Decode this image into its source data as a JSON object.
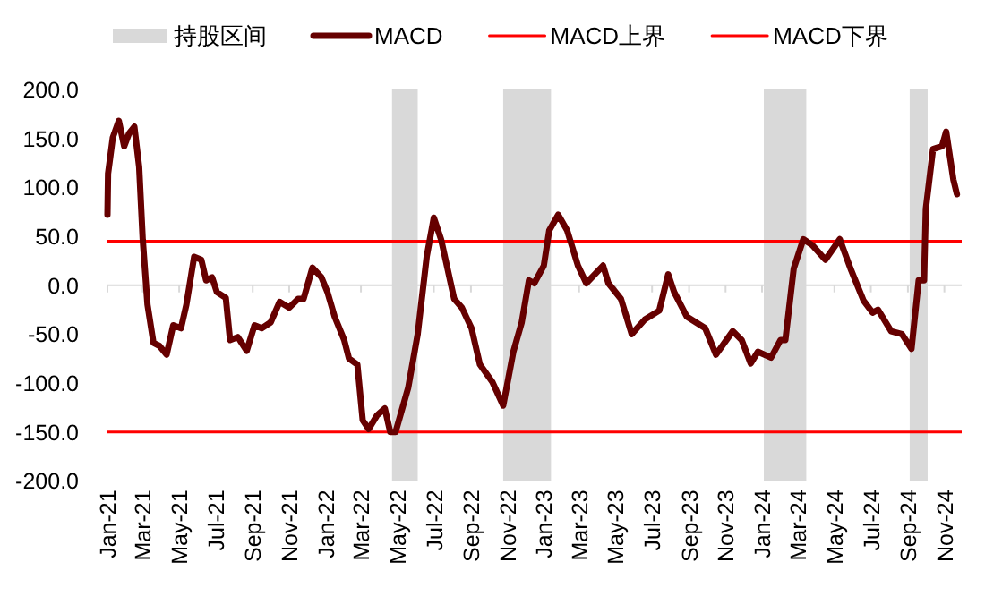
{
  "chart_data": {
    "type": "line",
    "legend": "top",
    "xlim": [
      "2021-01-01",
      "2024-11-30"
    ],
    "xticks": [
      {
        "value": "2021-01-01",
        "label": "Jan-21"
      },
      {
        "value": "2021-03-01",
        "label": "Mar-21"
      },
      {
        "value": "2021-05-01",
        "label": "May-21"
      },
      {
        "value": "2021-07-01",
        "label": "Jul-21"
      },
      {
        "value": "2021-09-01",
        "label": "Sep-21"
      },
      {
        "value": "2021-11-01",
        "label": "Nov-21"
      },
      {
        "value": "2022-01-01",
        "label": "Jan-22"
      },
      {
        "value": "2022-03-01",
        "label": "Mar-22"
      },
      {
        "value": "2022-05-01",
        "label": "May-22"
      },
      {
        "value": "2022-07-01",
        "label": "Jul-22"
      },
      {
        "value": "2022-09-01",
        "label": "Sep-22"
      },
      {
        "value": "2022-11-01",
        "label": "Nov-22"
      },
      {
        "value": "2023-01-01",
        "label": "Jan-23"
      },
      {
        "value": "2023-03-01",
        "label": "Mar-23"
      },
      {
        "value": "2023-05-01",
        "label": "May-23"
      },
      {
        "value": "2023-07-01",
        "label": "Jul-23"
      },
      {
        "value": "2023-09-01",
        "label": "Sep-23"
      },
      {
        "value": "2023-11-01",
        "label": "Nov-23"
      },
      {
        "value": "2024-01-01",
        "label": "Jan-24"
      },
      {
        "value": "2024-03-01",
        "label": "Mar-24"
      },
      {
        "value": "2024-05-01",
        "label": "May-24"
      },
      {
        "value": "2024-07-01",
        "label": "Jul-24"
      },
      {
        "value": "2024-09-01",
        "label": "Sep-24"
      },
      {
        "value": "2024-11-01",
        "label": "Nov-24"
      }
    ],
    "ylim": [
      -200,
      200
    ],
    "yticks": [
      {
        "value": 200,
        "label": "200.0"
      },
      {
        "value": 150,
        "label": "150.0"
      },
      {
        "value": 100,
        "label": "100.0"
      },
      {
        "value": 50,
        "label": "50.0"
      },
      {
        "value": 0,
        "label": "0.0"
      },
      {
        "value": -50,
        "label": "-50.0"
      },
      {
        "value": -100,
        "label": "-100.0"
      },
      {
        "value": -150,
        "label": "-150.0"
      },
      {
        "value": -200,
        "label": "-200.0"
      }
    ],
    "bands": [
      {
        "axis": "x",
        "from": "2022-04-22",
        "to": "2022-06-04",
        "label": "持股区间",
        "color": "#d9d9d9"
      },
      {
        "axis": "x",
        "from": "2022-10-25",
        "to": "2023-01-13",
        "color": "#d9d9d9"
      },
      {
        "axis": "x",
        "from": "2024-01-04",
        "to": "2024-03-15",
        "color": "#d9d9d9"
      },
      {
        "axis": "x",
        "from": "2024-09-04",
        "to": "2024-10-04",
        "color": "#d9d9d9"
      }
    ],
    "ref_lines": [
      {
        "axis": "y",
        "value": 45,
        "label": "MACD上界",
        "color": "#ff0000"
      },
      {
        "axis": "y",
        "value": -150,
        "label": "MACD下界",
        "color": "#ff0000"
      }
    ],
    "x": [
      "2021-01-01",
      "2021-01-02",
      "2021-01-10",
      "2021-01-20",
      "2021-01-29",
      "2021-02-06",
      "2021-02-15",
      "2021-02-23",
      "2021-03-01",
      "2021-03-09",
      "2021-03-19",
      "2021-03-29",
      "2021-04-10",
      "2021-04-21",
      "2021-05-04",
      "2021-05-13",
      "2021-05-26",
      "2021-06-07",
      "2021-06-15",
      "2021-06-25",
      "2021-07-03",
      "2021-07-18",
      "2021-07-25",
      "2021-08-07",
      "2021-08-22",
      "2021-09-04",
      "2021-09-16",
      "2021-10-01",
      "2021-10-16",
      "2021-11-01",
      "2021-11-16",
      "2021-11-25",
      "2021-12-10",
      "2021-12-25",
      "2022-01-04",
      "2022-01-16",
      "2022-02-01",
      "2022-02-09",
      "2022-02-23",
      "2022-03-04",
      "2022-03-14",
      "2022-03-28",
      "2022-04-10",
      "2022-04-19",
      "2022-04-28",
      "2022-05-19",
      "2022-06-04",
      "2022-06-19",
      "2022-07-01",
      "2022-07-13",
      "2022-08-04",
      "2022-08-17",
      "2022-09-02",
      "2022-09-16",
      "2022-10-07",
      "2022-10-25",
      "2022-11-11",
      "2022-11-25",
      "2022-12-07",
      "2022-12-16",
      "2023-01-01",
      "2023-01-10",
      "2023-01-25",
      "2023-02-09",
      "2023-02-27",
      "2023-03-13",
      "2023-04-10",
      "2023-04-19",
      "2023-05-10",
      "2023-05-28",
      "2023-06-19",
      "2023-07-13",
      "2023-07-28",
      "2023-08-07",
      "2023-08-28",
      "2023-09-28",
      "2023-10-16",
      "2023-11-13",
      "2023-11-28",
      "2023-12-13",
      "2023-12-25",
      "2024-01-16",
      "2024-02-01",
      "2024-02-09",
      "2024-02-23",
      "2024-03-10",
      "2024-03-25",
      "2024-04-16",
      "2024-05-10",
      "2024-05-28",
      "2024-06-19",
      "2024-07-04",
      "2024-07-13",
      "2024-08-04",
      "2024-08-22",
      "2024-09-07",
      "2024-09-19",
      "2024-09-28",
      "2024-10-01",
      "2024-10-13",
      "2024-10-28",
      "2024-11-04",
      "2024-11-16",
      "2024-11-22"
    ],
    "series": [
      {
        "name": "MACD",
        "color": "#660000",
        "values": [
          72,
          114,
          151,
          168,
          142,
          155,
          162,
          121,
          47,
          -20,
          -59,
          -62,
          -71,
          -41,
          -44,
          -20,
          29,
          26,
          5,
          8,
          -7,
          -13,
          -56,
          -53,
          -67,
          -41,
          -44,
          -38,
          -17,
          -23,
          -14,
          -14,
          18,
          8,
          -7,
          -32,
          -56,
          -75,
          -81,
          -138,
          -147,
          -133,
          -126,
          -150,
          -150,
          -105,
          -50,
          29,
          69,
          47,
          -14,
          -23,
          -44,
          -81,
          -99,
          -123,
          -68,
          -38,
          5,
          2,
          20,
          56,
          72,
          56,
          20,
          2,
          20,
          2,
          -14,
          -50,
          -35,
          -26,
          11,
          -7,
          -32,
          -44,
          -71,
          -47,
          -56,
          -80,
          -68,
          -74,
          -56,
          -56,
          17,
          47,
          41,
          26,
          47,
          17,
          -16,
          -28,
          -25,
          -47,
          -50,
          -65,
          5,
          5,
          78,
          139,
          142,
          157,
          108,
          93
        ]
      }
    ]
  }
}
